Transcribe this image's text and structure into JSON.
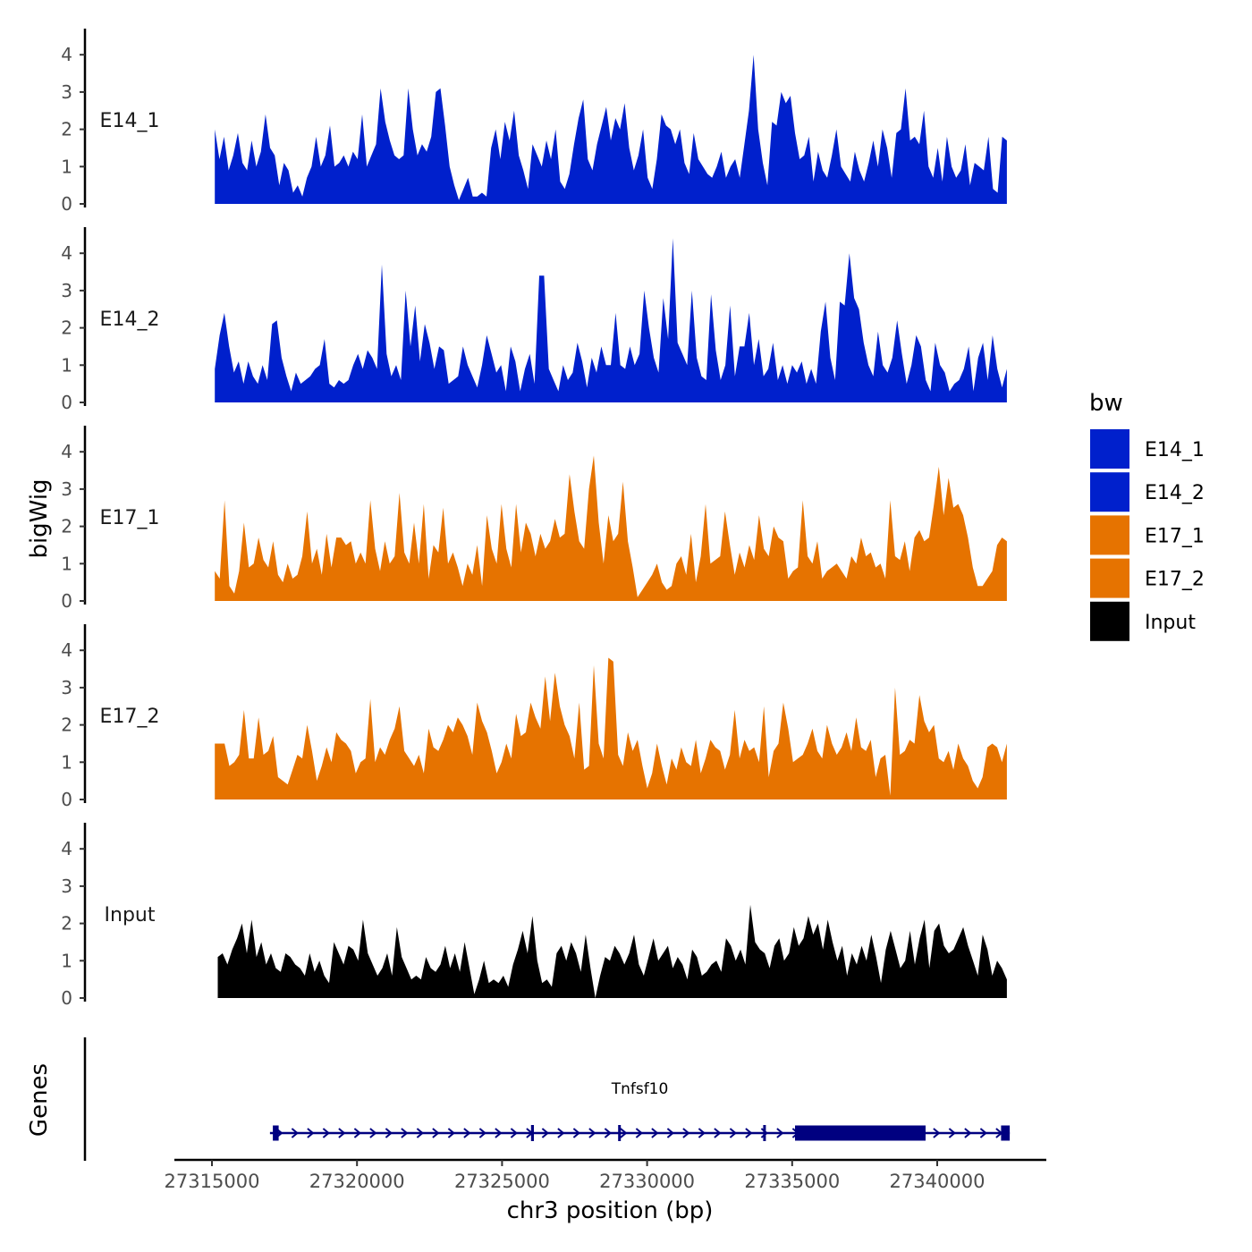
{
  "chart_data": {
    "type": "area",
    "ylabel": "bigWig",
    "xlabel": "chr3 position (bp)",
    "gene_track_label": "Genes",
    "xlim": [
      27315000,
      27342400
    ],
    "x_ticks": [
      27315000,
      27320000,
      27325000,
      27330000,
      27335000,
      27340000
    ],
    "x_tick_labels": [
      "27315000",
      "27320000",
      "27325000",
      "27330000",
      "27335000",
      "27340000"
    ],
    "ylim": [
      0,
      4.5
    ],
    "y_ticks": [
      0,
      1,
      2,
      3,
      4
    ],
    "y_tick_labels": [
      "0",
      "1",
      "2",
      "3",
      "4"
    ],
    "legend": {
      "title": "bw",
      "position": "right",
      "items": [
        {
          "label": "E14_1",
          "color": "#0020CC"
        },
        {
          "label": "E14_2",
          "color": "#0020CC"
        },
        {
          "label": "E17_1",
          "color": "#E67300"
        },
        {
          "label": "E17_2",
          "color": "#E67300"
        },
        {
          "label": "Input",
          "color": "#000000"
        }
      ]
    },
    "series": [
      {
        "name": "E14_1",
        "color": "#0020CC",
        "x_start": 27315100,
        "x_end": 27342400,
        "values": [
          2.0,
          1.2,
          1.8,
          0.9,
          1.3,
          1.9,
          1.1,
          0.9,
          1.7,
          1.0,
          1.4,
          2.4,
          1.5,
          1.3,
          0.5,
          1.1,
          0.9,
          0.3,
          0.5,
          0.2,
          0.7,
          1.0,
          1.8,
          1.0,
          1.3,
          2.1,
          1.0,
          1.1,
          1.3,
          1.0,
          1.4,
          1.2,
          2.4,
          1.0,
          1.3,
          1.6,
          3.1,
          2.2,
          1.7,
          1.3,
          1.2,
          1.3,
          3.1,
          2.0,
          1.3,
          1.6,
          1.4,
          1.8,
          3.0,
          3.1,
          2.1,
          1.0,
          0.5,
          0.1,
          0.4,
          0.7,
          0.2,
          0.2,
          0.3,
          0.2,
          1.5,
          2.0,
          1.2,
          2.2,
          1.7,
          2.5,
          1.3,
          0.9,
          0.4,
          1.6,
          1.3,
          1.0,
          1.7,
          1.2,
          2.0,
          0.6,
          0.4,
          0.8,
          1.6,
          2.3,
          2.8,
          1.2,
          0.9,
          1.6,
          2.1,
          2.6,
          1.7,
          2.3,
          2.0,
          2.7,
          1.5,
          0.9,
          1.3,
          2.0,
          0.7,
          0.4,
          1.2,
          2.4,
          2.1,
          2.0,
          1.6,
          2.0,
          1.1,
          0.8,
          1.9,
          1.2,
          1.0,
          0.8,
          0.7,
          1.0,
          1.4,
          0.7,
          1.0,
          1.2,
          0.7,
          1.6,
          2.5,
          4.0,
          2.0,
          1.1,
          0.5,
          2.2,
          2.1,
          3.0,
          2.7,
          2.9,
          1.9,
          1.2,
          1.3,
          1.8,
          0.6,
          1.4,
          0.9,
          0.7,
          1.3,
          2.0,
          1.0,
          0.8,
          0.6,
          1.4,
          0.9,
          0.6,
          1.1,
          1.7,
          1.0,
          2.0,
          1.5,
          0.7,
          1.9,
          2.0,
          3.1,
          1.7,
          1.8,
          1.6,
          2.5,
          1.0,
          0.7,
          1.5,
          0.6,
          1.8,
          1.0,
          0.7,
          0.9,
          1.6,
          0.5,
          1.1,
          1.0,
          0.9,
          1.8,
          0.4,
          0.3,
          1.8,
          1.7
        ]
      },
      {
        "name": "E14_2",
        "color": "#0020CC",
        "x_start": 27315100,
        "x_end": 27342400,
        "values": [
          0.9,
          1.8,
          2.4,
          1.5,
          0.8,
          1.1,
          0.5,
          1.1,
          0.7,
          0.5,
          1.0,
          0.6,
          2.1,
          2.2,
          1.2,
          0.7,
          0.3,
          0.8,
          0.5,
          0.6,
          0.7,
          0.9,
          1.0,
          1.7,
          0.5,
          0.4,
          0.6,
          0.5,
          0.6,
          1.0,
          1.3,
          0.9,
          1.4,
          1.2,
          0.9,
          3.7,
          1.3,
          0.7,
          1.0,
          0.6,
          3.0,
          1.5,
          2.6,
          1.1,
          2.1,
          1.6,
          0.9,
          1.5,
          1.4,
          0.5,
          0.6,
          0.7,
          1.5,
          1.0,
          0.7,
          0.4,
          1.0,
          1.8,
          1.3,
          0.8,
          1.0,
          0.3,
          1.5,
          1.1,
          0.3,
          0.9,
          1.3,
          0.5,
          3.4,
          3.4,
          0.9,
          0.6,
          0.3,
          1.0,
          0.6,
          0.8,
          1.6,
          1.1,
          0.4,
          1.2,
          0.8,
          1.5,
          1.0,
          1.0,
          2.4,
          1.0,
          0.9,
          1.5,
          1.0,
          1.3,
          3.0,
          2.0,
          1.2,
          0.8,
          2.8,
          1.7,
          4.4,
          1.6,
          1.3,
          1.0,
          3.0,
          1.2,
          0.7,
          0.6,
          2.9,
          1.4,
          0.6,
          1.0,
          2.6,
          0.7,
          1.5,
          1.5,
          2.4,
          1.0,
          1.7,
          0.7,
          0.9,
          1.6,
          0.6,
          1.0,
          0.5,
          1.0,
          0.8,
          1.1,
          0.5,
          0.9,
          0.5,
          1.9,
          2.7,
          1.2,
          0.6,
          2.7,
          2.6,
          4.0,
          2.8,
          2.5,
          1.6,
          1.0,
          0.7,
          1.9,
          1.0,
          0.8,
          1.2,
          2.2,
          1.3,
          0.5,
          1.0,
          1.8,
          1.5,
          0.6,
          0.3,
          1.6,
          1.0,
          0.8,
          0.3,
          0.5,
          0.6,
          0.9,
          1.5,
          0.3,
          1.2,
          1.6,
          0.6,
          1.8,
          0.9,
          0.4,
          0.9
        ]
      },
      {
        "name": "E17_1",
        "color": "#E67300",
        "x_start": 27315100,
        "x_end": 27342400,
        "values": [
          0.8,
          0.6,
          2.7,
          0.4,
          0.2,
          0.8,
          2.1,
          0.9,
          1.0,
          1.7,
          1.1,
          0.9,
          1.6,
          0.7,
          0.5,
          1.0,
          0.6,
          0.7,
          1.2,
          2.4,
          1.0,
          1.4,
          0.7,
          1.8,
          0.9,
          1.7,
          1.7,
          1.5,
          1.6,
          1.0,
          1.3,
          1.0,
          2.7,
          1.4,
          0.8,
          1.6,
          1.0,
          1.2,
          2.9,
          1.3,
          1.0,
          2.1,
          1.0,
          2.6,
          0.6,
          1.5,
          1.3,
          2.5,
          1.0,
          1.3,
          0.9,
          0.4,
          1.0,
          0.7,
          1.5,
          0.4,
          2.3,
          1.4,
          1.0,
          2.6,
          1.4,
          0.9,
          2.6,
          1.3,
          2.1,
          1.8,
          1.2,
          1.8,
          1.4,
          1.6,
          2.2,
          1.7,
          1.8,
          3.4,
          2.4,
          1.6,
          1.4,
          3.0,
          3.9,
          2.1,
          1.0,
          2.3,
          1.6,
          1.8,
          3.2,
          1.6,
          0.9,
          0.1,
          0.3,
          0.5,
          0.7,
          1.0,
          0.5,
          0.3,
          0.4,
          1.0,
          1.2,
          0.7,
          1.8,
          0.5,
          1.2,
          2.6,
          1.0,
          1.1,
          1.2,
          2.4,
          1.5,
          0.7,
          1.3,
          0.9,
          1.5,
          1.1,
          2.3,
          1.4,
          1.2,
          2.0,
          1.7,
          1.6,
          0.6,
          0.8,
          0.9,
          2.7,
          1.2,
          1.0,
          1.6,
          0.6,
          0.8,
          0.9,
          1.0,
          0.8,
          0.6,
          1.2,
          1.0,
          1.7,
          1.2,
          1.3,
          0.9,
          1.0,
          0.6,
          2.7,
          1.2,
          1.1,
          1.6,
          0.8,
          1.7,
          1.9,
          1.6,
          1.7,
          2.6,
          3.6,
          2.3,
          3.3,
          2.5,
          2.6,
          2.3,
          1.7,
          0.9,
          0.4,
          0.4,
          0.6,
          0.8,
          1.5,
          1.7,
          1.6
        ]
      },
      {
        "name": "E17_2",
        "color": "#E67300",
        "x_start": 27315100,
        "x_end": 27342400,
        "values": [
          1.5,
          1.5,
          1.5,
          0.9,
          1.0,
          1.2,
          2.4,
          1.1,
          1.1,
          2.2,
          1.2,
          1.3,
          1.7,
          0.6,
          0.5,
          0.4,
          0.8,
          1.2,
          1.1,
          2.0,
          1.3,
          0.5,
          0.9,
          1.4,
          1.0,
          1.8,
          1.6,
          1.5,
          1.3,
          0.7,
          1.0,
          1.1,
          2.7,
          1.0,
          1.4,
          1.2,
          1.6,
          1.9,
          2.5,
          1.3,
          1.1,
          0.9,
          1.2,
          0.7,
          1.9,
          1.4,
          1.3,
          1.6,
          2.0,
          1.8,
          2.2,
          2.0,
          1.7,
          1.2,
          2.6,
          2.1,
          1.8,
          1.3,
          0.7,
          1.0,
          1.5,
          1.1,
          2.3,
          1.7,
          1.8,
          2.6,
          2.2,
          1.9,
          3.3,
          2.1,
          3.4,
          2.5,
          2.0,
          1.7,
          1.1,
          2.6,
          0.8,
          0.9,
          3.6,
          1.5,
          1.1,
          3.8,
          3.7,
          1.2,
          0.9,
          1.8,
          1.3,
          1.6,
          0.9,
          0.3,
          0.7,
          1.5,
          0.9,
          0.4,
          1.1,
          0.8,
          1.4,
          1.0,
          0.9,
          1.6,
          0.7,
          1.1,
          1.6,
          1.4,
          1.3,
          0.8,
          1.2,
          2.4,
          1.1,
          1.6,
          1.3,
          1.4,
          1.0,
          2.5,
          0.6,
          1.3,
          1.5,
          2.6,
          1.9,
          1.0,
          1.1,
          1.2,
          1.5,
          1.9,
          1.3,
          1.1,
          2.0,
          1.5,
          1.2,
          1.4,
          1.8,
          1.3,
          2.2,
          1.4,
          1.3,
          1.6,
          0.6,
          1.1,
          1.2,
          0.1,
          3.0,
          1.2,
          1.3,
          1.6,
          1.5,
          2.8,
          2.1,
          1.8,
          2.0,
          1.1,
          1.0,
          1.3,
          0.8,
          1.5,
          1.1,
          0.9,
          0.5,
          0.3,
          0.6,
          1.4,
          1.5,
          1.4,
          1.0,
          1.5
        ]
      },
      {
        "name": "Input",
        "color": "#000000",
        "x_start": 27315200,
        "x_end": 27342400,
        "values": [
          1.1,
          1.2,
          0.9,
          1.3,
          1.6,
          2.0,
          1.2,
          2.1,
          1.1,
          1.5,
          0.9,
          1.2,
          0.8,
          0.7,
          1.2,
          1.1,
          0.9,
          0.8,
          0.6,
          1.2,
          0.7,
          1.0,
          0.6,
          0.4,
          1.5,
          1.2,
          0.9,
          1.4,
          1.3,
          1.0,
          2.1,
          1.2,
          0.9,
          0.6,
          0.8,
          1.2,
          0.6,
          1.9,
          1.1,
          0.8,
          0.5,
          0.6,
          0.5,
          1.1,
          0.8,
          0.7,
          0.9,
          1.4,
          0.8,
          1.2,
          0.7,
          1.5,
          0.8,
          0.1,
          0.5,
          1.0,
          0.4,
          0.5,
          0.4,
          0.6,
          0.3,
          0.9,
          1.3,
          1.8,
          1.2,
          2.2,
          1.0,
          0.4,
          0.5,
          0.3,
          1.2,
          1.4,
          1.0,
          1.5,
          1.2,
          0.7,
          1.7,
          0.8,
          0.0,
          0.6,
          1.1,
          1.0,
          1.4,
          1.2,
          0.9,
          1.2,
          1.7,
          0.9,
          0.6,
          1.1,
          1.6,
          1.0,
          1.2,
          1.4,
          0.8,
          1.1,
          0.9,
          0.5,
          1.3,
          1.1,
          0.6,
          0.7,
          0.9,
          1.0,
          0.7,
          1.6,
          1.4,
          1.0,
          1.3,
          0.9,
          2.5,
          1.5,
          1.3,
          1.2,
          0.8,
          1.4,
          1.6,
          1.0,
          1.2,
          1.9,
          1.4,
          1.6,
          2.2,
          1.7,
          2.0,
          1.3,
          2.1,
          1.5,
          1.0,
          1.4,
          0.6,
          1.2,
          0.9,
          1.4,
          1.0,
          1.7,
          1.1,
          0.4,
          1.3,
          1.8,
          1.3,
          0.8,
          1.0,
          1.8,
          0.9,
          1.6,
          2.1,
          0.8,
          1.8,
          2.0,
          1.4,
          1.2,
          1.3,
          1.6,
          1.9,
          1.4,
          1.0,
          0.6,
          1.7,
          1.3,
          0.6,
          1.0,
          0.8,
          0.5
        ]
      }
    ],
    "gene": {
      "name": "Tnfsf10",
      "strand": "+",
      "color": "#000080",
      "start": 27317000,
      "end": 27342500,
      "exons": [
        [
          27317100,
          27317300
        ],
        [
          27326000,
          27326100
        ],
        [
          27329000,
          27329050
        ],
        [
          27334000,
          27334050
        ],
        [
          27335100,
          27339600
        ],
        [
          27342200,
          27342500
        ]
      ]
    }
  }
}
